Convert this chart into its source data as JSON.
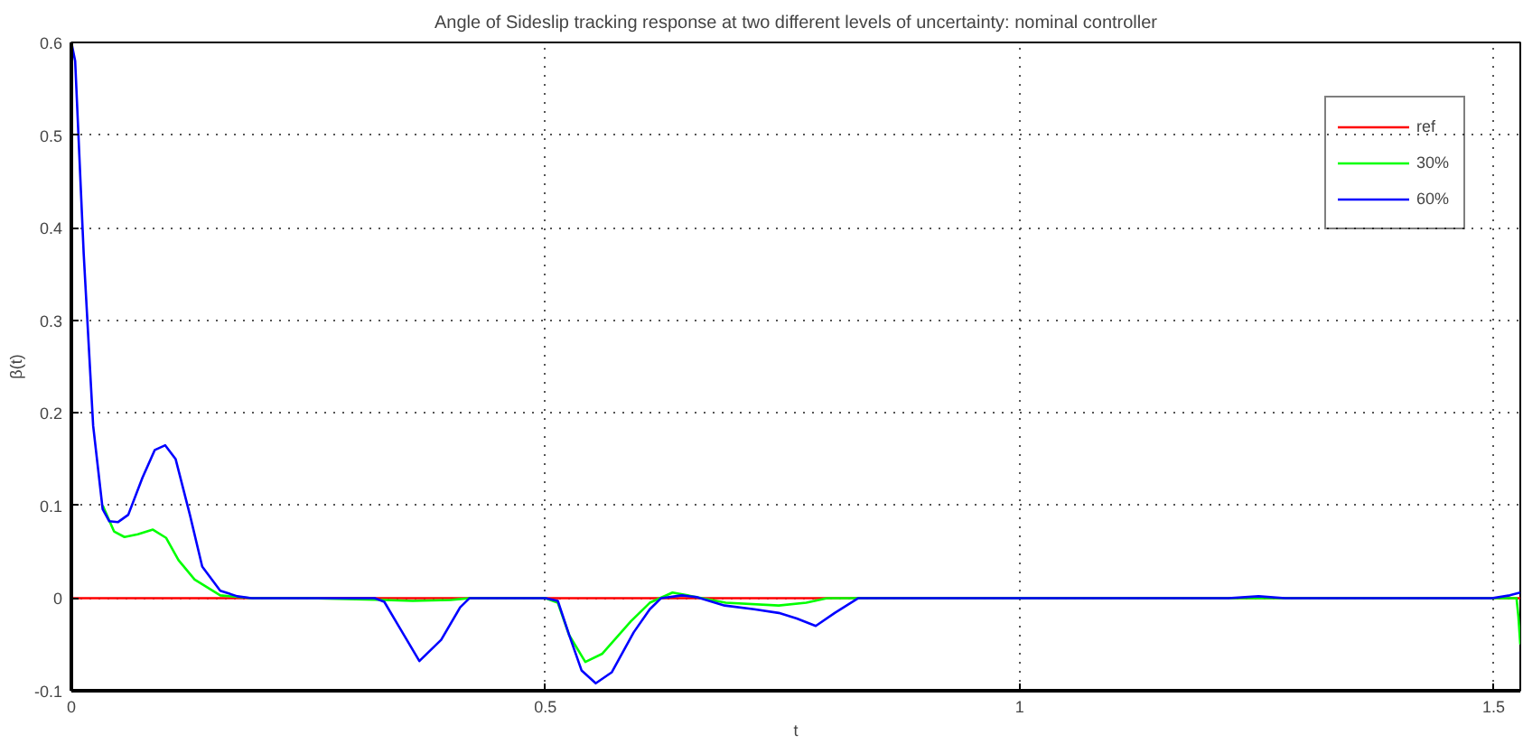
{
  "chart_data": {
    "type": "line",
    "title": "Angle of Sideslip tracking response at two different levels of uncertainty: nominal controller",
    "xlabel": "t",
    "ylabel": "β(t)",
    "xlim": [
      0,
      1.528
    ],
    "ylim": [
      -0.1,
      0.6
    ],
    "xticks": [
      0,
      0.5,
      1,
      1.5
    ],
    "yticks": [
      -0.1,
      0,
      0.1,
      0.2,
      0.3,
      0.4,
      0.5,
      0.6
    ],
    "grid": true,
    "legend": "top right",
    "line_style": "solid",
    "series": [
      {
        "name": "ref",
        "color": "#ff0000",
        "x": [
          0,
          1.528
        ],
        "values": [
          0,
          0
        ]
      },
      {
        "name": "30%",
        "color": "#00ff00",
        "x": [
          0.033,
          0.045,
          0.056,
          0.07,
          0.086,
          0.1,
          0.113,
          0.13,
          0.157,
          0.19,
          0.25,
          0.33,
          0.36,
          0.4,
          0.42,
          0.5,
          0.513,
          0.525,
          0.542,
          0.56,
          0.59,
          0.61,
          0.634,
          0.66,
          0.69,
          0.746,
          0.775,
          0.797,
          0.85,
          1.0,
          1.25,
          1.5,
          1.524,
          1.526,
          1.528
        ],
        "values": [
          0.1,
          0.072,
          0.066,
          0.069,
          0.074,
          0.065,
          0.041,
          0.02,
          0.003,
          0,
          0,
          -0.002,
          -0.003,
          -0.002,
          0,
          0,
          -0.005,
          -0.04,
          -0.069,
          -0.06,
          -0.025,
          -0.005,
          0.006,
          0.001,
          -0.005,
          -0.008,
          -0.005,
          0,
          0,
          0,
          0,
          0,
          0,
          -0.02,
          -0.05
        ]
      },
      {
        "name": "60%",
        "color": "#0000ff",
        "x": [
          0,
          0.004,
          0.013,
          0.023,
          0.033,
          0.04,
          0.049,
          0.06,
          0.075,
          0.088,
          0.099,
          0.11,
          0.125,
          0.138,
          0.157,
          0.175,
          0.19,
          0.25,
          0.32,
          0.33,
          0.345,
          0.367,
          0.39,
          0.41,
          0.42,
          0.5,
          0.513,
          0.525,
          0.538,
          0.553,
          0.57,
          0.593,
          0.61,
          0.622,
          0.644,
          0.66,
          0.689,
          0.72,
          0.746,
          0.765,
          0.785,
          0.805,
          0.83,
          0.9,
          1.0,
          1.22,
          1.252,
          1.28,
          1.498,
          1.517,
          1.528
        ],
        "values": [
          0.6,
          0.58,
          0.372,
          0.186,
          0.096,
          0.083,
          0.082,
          0.09,
          0.13,
          0.16,
          0.165,
          0.15,
          0.09,
          0.034,
          0.008,
          0.002,
          0,
          0,
          0,
          -0.004,
          -0.03,
          -0.068,
          -0.045,
          -0.01,
          0,
          0,
          -0.003,
          -0.04,
          -0.078,
          -0.092,
          -0.08,
          -0.037,
          -0.012,
          0,
          0.003,
          0.001,
          -0.008,
          -0.012,
          -0.016,
          -0.022,
          -0.03,
          -0.016,
          0,
          0,
          0,
          0,
          0.002,
          0,
          0,
          0.003,
          0.006
        ]
      }
    ]
  }
}
